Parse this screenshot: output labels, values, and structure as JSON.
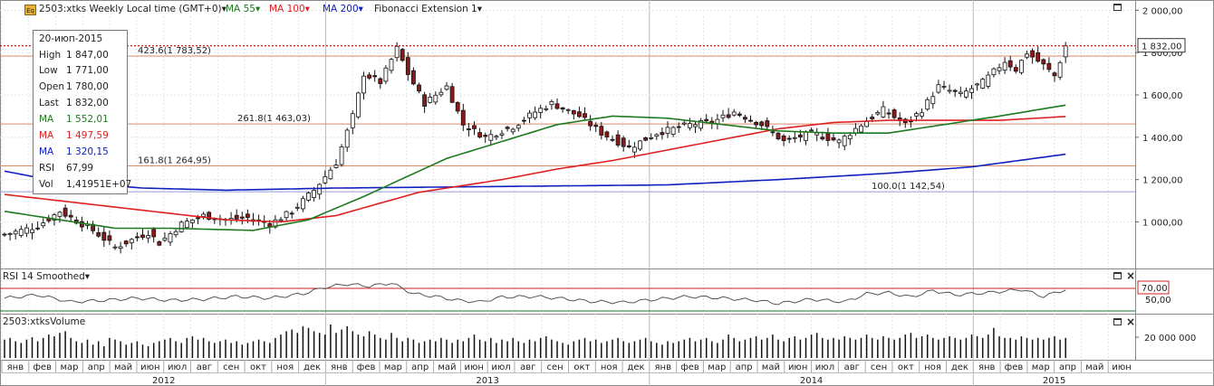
{
  "header": {
    "symbol_label": "2503:xtks Weekly Local time (GMT+0)▾",
    "ma1_label": "MA 55▾",
    "ma2_label": "MA 100▾",
    "ma3_label": "MA 200▾",
    "fib_label": "Fibonacci Extension 1▾",
    "eq_icon": "Eq"
  },
  "info": {
    "date": "20-июп-2015",
    "high_label": "High",
    "high": "1 847,00",
    "low_label": "Low",
    "low": "1 771,00",
    "open_label": "Open",
    "open": "1 780,00",
    "last_label": "Last",
    "last": "1 832,00",
    "ma55_label": "MA",
    "ma55": "1 552,01",
    "ma100_label": "MA",
    "ma100": "1 497,59",
    "ma200_label": "MA",
    "ma200": "1 320,15",
    "rsi_label": "RSI",
    "rsi": "67,99",
    "vol_label": "Vol",
    "vol": "1,41951E+07"
  },
  "colors": {
    "ma55": "#1e7a1e",
    "ma100": "#e02020",
    "ma200": "#1020c0",
    "fib": "#d98a6a",
    "last_line": "#c00000"
  },
  "rsi_panel": {
    "title": "RSI 14 Smoothed▾",
    "level_label": "70,00",
    "tick_50": "50,00"
  },
  "volume_panel": {
    "title": "2503:xtksVolume",
    "tick": "20 000 000"
  },
  "last_price_label": "1 832,00",
  "chart_data": {
    "type": "candlestick",
    "title": "2503:xtks Weekly",
    "ylim": [
      780,
      2040
    ],
    "y_ticks": [
      1000,
      1200,
      1400,
      1600,
      1800,
      2000
    ],
    "y_tick_labels": [
      "1 000,00",
      "1 200,00",
      "1 400,00",
      "1 600,00",
      "1 800,00",
      "2 000,00"
    ],
    "month_labels": [
      "янв",
      "фев",
      "мар",
      "апр",
      "май",
      "июн",
      "июл",
      "авг",
      "сен",
      "окт",
      "ноя",
      "дек",
      "янв",
      "фев",
      "мар",
      "апр",
      "май",
      "июн",
      "июл",
      "авг",
      "сен",
      "окт",
      "ноя",
      "дек",
      "янв",
      "фев",
      "мар",
      "апр",
      "май",
      "июн",
      "июл",
      "авг",
      "сен",
      "окт",
      "ноя",
      "дек",
      "янв",
      "фев",
      "мар",
      "апр",
      "май",
      "июн"
    ],
    "years": [
      "2012",
      "2013",
      "2014",
      "2015"
    ],
    "fib_levels": [
      {
        "label": "423.6(1 783,52)",
        "value": 1783.52
      },
      {
        "label": "261.8(1 463,03)",
        "value": 1463.03
      },
      {
        "label": "161.8(1 264,95)",
        "value": 1264.95
      },
      {
        "label": "100.0(1 142,54)",
        "value": 1142.54
      }
    ],
    "last_price": 1832,
    "close_anchors": [
      [
        0,
        940
      ],
      [
        6,
        980
      ],
      [
        10,
        1050
      ],
      [
        16,
        960
      ],
      [
        20,
        880
      ],
      [
        26,
        950
      ],
      [
        28,
        900
      ],
      [
        32,
        990
      ],
      [
        36,
        1030
      ],
      [
        40,
        1010
      ],
      [
        44,
        1020
      ],
      [
        48,
        990
      ],
      [
        52,
        1050
      ],
      [
        56,
        1150
      ],
      [
        60,
        1280
      ],
      [
        63,
        1500
      ],
      [
        65,
        1700
      ],
      [
        68,
        1660
      ],
      [
        71,
        1820
      ],
      [
        73,
        1700
      ],
      [
        76,
        1560
      ],
      [
        80,
        1640
      ],
      [
        83,
        1460
      ],
      [
        87,
        1400
      ],
      [
        92,
        1450
      ],
      [
        96,
        1520
      ],
      [
        99,
        1560
      ],
      [
        104,
        1500
      ],
      [
        108,
        1420
      ],
      [
        113,
        1350
      ],
      [
        118,
        1420
      ],
      [
        124,
        1460
      ],
      [
        128,
        1470
      ],
      [
        132,
        1520
      ],
      [
        137,
        1460
      ],
      [
        141,
        1380
      ],
      [
        146,
        1420
      ],
      [
        151,
        1380
      ],
      [
        155,
        1460
      ],
      [
        159,
        1530
      ],
      [
        163,
        1460
      ],
      [
        166,
        1530
      ],
      [
        169,
        1640
      ],
      [
        173,
        1600
      ],
      [
        177,
        1660
      ],
      [
        181,
        1760
      ],
      [
        183,
        1720
      ],
      [
        185,
        1800
      ],
      [
        188,
        1740
      ],
      [
        190,
        1690
      ],
      [
        192,
        1832
      ]
    ],
    "ma55_anchors": [
      [
        0,
        1050
      ],
      [
        20,
        970
      ],
      [
        30,
        970
      ],
      [
        45,
        960
      ],
      [
        55,
        1010
      ],
      [
        65,
        1120
      ],
      [
        80,
        1300
      ],
      [
        90,
        1380
      ],
      [
        100,
        1460
      ],
      [
        110,
        1500
      ],
      [
        120,
        1490
      ],
      [
        130,
        1460
      ],
      [
        140,
        1430
      ],
      [
        150,
        1420
      ],
      [
        160,
        1420
      ],
      [
        170,
        1460
      ],
      [
        180,
        1500
      ],
      [
        192,
        1552
      ]
    ],
    "ma100_anchors": [
      [
        0,
        1130
      ],
      [
        20,
        1070
      ],
      [
        40,
        1010
      ],
      [
        50,
        1000
      ],
      [
        60,
        1030
      ],
      [
        75,
        1140
      ],
      [
        90,
        1200
      ],
      [
        100,
        1250
      ],
      [
        110,
        1290
      ],
      [
        120,
        1340
      ],
      [
        130,
        1390
      ],
      [
        140,
        1440
      ],
      [
        150,
        1470
      ],
      [
        160,
        1480
      ],
      [
        170,
        1480
      ],
      [
        180,
        1480
      ],
      [
        192,
        1498
      ]
    ],
    "ma200_anchors": [
      [
        0,
        1240
      ],
      [
        10,
        1190
      ],
      [
        25,
        1160
      ],
      [
        40,
        1150
      ],
      [
        60,
        1160
      ],
      [
        80,
        1165
      ],
      [
        100,
        1170
      ],
      [
        120,
        1175
      ],
      [
        140,
        1200
      ],
      [
        160,
        1230
      ],
      [
        175,
        1260
      ],
      [
        192,
        1320
      ]
    ],
    "rsi_anchors": [
      [
        0,
        52
      ],
      [
        6,
        58
      ],
      [
        12,
        45
      ],
      [
        18,
        48
      ],
      [
        24,
        52
      ],
      [
        30,
        48
      ],
      [
        36,
        50
      ],
      [
        42,
        55
      ],
      [
        48,
        52
      ],
      [
        54,
        60
      ],
      [
        58,
        72
      ],
      [
        62,
        78
      ],
      [
        66,
        74
      ],
      [
        70,
        80
      ],
      [
        74,
        60
      ],
      [
        78,
        55
      ],
      [
        82,
        48
      ],
      [
        86,
        45
      ],
      [
        90,
        54
      ],
      [
        96,
        55
      ],
      [
        100,
        52
      ],
      [
        106,
        46
      ],
      [
        112,
        44
      ],
      [
        118,
        50
      ],
      [
        124,
        55
      ],
      [
        130,
        52
      ],
      [
        136,
        48
      ],
      [
        140,
        42
      ],
      [
        146,
        50
      ],
      [
        152,
        45
      ],
      [
        156,
        60
      ],
      [
        160,
        62
      ],
      [
        164,
        54
      ],
      [
        168,
        66
      ],
      [
        172,
        58
      ],
      [
        178,
        62
      ],
      [
        184,
        68
      ],
      [
        188,
        55
      ],
      [
        192,
        68
      ]
    ],
    "volume_levels": [
      0.55,
      0.6,
      0.5,
      0.45,
      0.55,
      0.62,
      0.5,
      0.6,
      0.7,
      0.65,
      0.75,
      0.8,
      0.6,
      0.5,
      0.45,
      0.55,
      0.4,
      0.5,
      0.35,
      0.6,
      0.55,
      0.5,
      0.4,
      0.45,
      0.5,
      0.4,
      0.35,
      0.45,
      0.5,
      0.55,
      0.6,
      0.5,
      0.45,
      0.6,
      0.65,
      0.55,
      0.6,
      0.5,
      0.45,
      0.5,
      0.55,
      0.45,
      0.5,
      0.4,
      0.45,
      0.5,
      0.55,
      0.5,
      0.45,
      0.6,
      0.7,
      0.8,
      0.85,
      0.75,
      0.95,
      0.9,
      0.8,
      0.75,
      0.7,
      1.0,
      0.75,
      0.85,
      0.95,
      0.8,
      0.7,
      0.65,
      0.8,
      0.7,
      0.6,
      0.55,
      0.75,
      0.6,
      0.5,
      0.6,
      0.55,
      0.45,
      0.5,
      0.55,
      0.5,
      0.6,
      0.55,
      0.45,
      0.55,
      0.5,
      0.6,
      0.7,
      0.55,
      0.5,
      0.6,
      0.45,
      0.55,
      0.5,
      0.6,
      0.5,
      0.45,
      0.55,
      0.5,
      0.6,
      0.65,
      0.55,
      0.5,
      0.45,
      0.4,
      0.5,
      0.55,
      0.6,
      0.5,
      0.55,
      0.45,
      0.5,
      0.55,
      0.6,
      0.5,
      0.45,
      0.5,
      0.55,
      0.6,
      0.5,
      0.45,
      0.4,
      0.5,
      0.45,
      0.5,
      0.55,
      0.6,
      0.5,
      0.55,
      0.6,
      0.5,
      0.45,
      0.55,
      0.7,
      0.6,
      0.5,
      0.55,
      0.6,
      0.65,
      0.55,
      0.6,
      0.7,
      0.55,
      0.5,
      0.6,
      0.65,
      0.55,
      0.6,
      0.7,
      0.75,
      0.6,
      0.55,
      0.6,
      0.55,
      0.65,
      0.6,
      0.55,
      0.6,
      0.7,
      0.6,
      0.55,
      0.65,
      0.6,
      0.55,
      0.6,
      0.7,
      0.75,
      0.6,
      0.65,
      0.7,
      0.6,
      0.55,
      0.6,
      0.65,
      0.6,
      0.55,
      0.6,
      0.7,
      0.65,
      0.6,
      0.7,
      0.9,
      0.65,
      0.6,
      0.6,
      0.55,
      0.65,
      0.6,
      0.55,
      0.6,
      0.55,
      0.6,
      0.65,
      0.55,
      0.6,
      0.65,
      0.6,
      0.55
    ],
    "rsi_level": 70
  }
}
